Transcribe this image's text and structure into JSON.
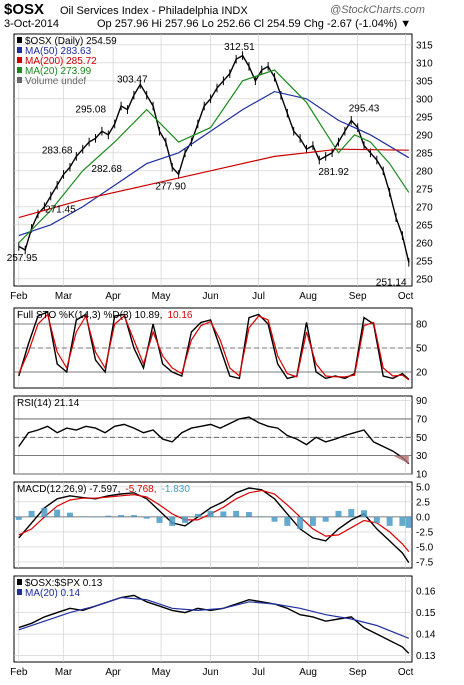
{
  "header": {
    "symbol": "$OSX",
    "name": "Oil Services Index - Philadelphia INDX",
    "credit": "@StockCharts.com",
    "date": "3-Oct-2014",
    "quote": "Op 257.96  Hi 257.96  Lo 252.66  Cl 254.59  Chg -2.67 (-1.04%) ▼"
  },
  "colors": {
    "price": "#000000",
    "ma50": "#1f2f9f",
    "ma200": "#cc0000",
    "ma20": "#1a8a1a",
    "sto_d": "#dd0000",
    "rsi_fill": "#b07070",
    "macd_signal": "#dd0000",
    "histogram": "#4a9ac6",
    "grid": "#cccccc"
  },
  "chart_data": [
    {
      "type": "line",
      "id": "price",
      "legend": [
        {
          "label": "$OSX (Daily) 254.59",
          "color": "#000000"
        },
        {
          "label": "MA(50) 283.63",
          "color": "#1f2f9f"
        },
        {
          "label": "MA(200) 285.72",
          "color": "#cc0000"
        },
        {
          "label": "MA(20) 273.99",
          "color": "#1a8a1a"
        },
        {
          "label": "Volume undef",
          "color": "#666666"
        }
      ],
      "ylim": [
        248,
        318
      ],
      "y_ticks": [
        250,
        255,
        260,
        265,
        270,
        275,
        280,
        285,
        290,
        295,
        300,
        305,
        310,
        315
      ],
      "x_labels": [
        "Feb",
        "Mar",
        "Apr",
        "May",
        "Jun",
        "Jul",
        "Aug",
        "Sep",
        "Oct"
      ],
      "x_label_days": [
        0,
        28,
        59,
        89,
        120,
        150,
        181,
        212,
        242
      ],
      "day_range": [
        -3,
        246
      ],
      "annotations": [
        {
          "text": "257.95",
          "day": 2,
          "value": 257.95,
          "pos": "below"
        },
        {
          "text": "271.45",
          "day": 26,
          "value": 271.45,
          "pos": "below"
        },
        {
          "text": "283.68",
          "day": 24,
          "value": 283.68,
          "pos": "above"
        },
        {
          "text": "295.08",
          "day": 45,
          "value": 295.08,
          "pos": "above"
        },
        {
          "text": "282.68",
          "day": 55,
          "value": 282.68,
          "pos": "below"
        },
        {
          "text": "303.47",
          "day": 71,
          "value": 303.47,
          "pos": "above"
        },
        {
          "text": "277.90",
          "day": 95,
          "value": 277.9,
          "pos": "below"
        },
        {
          "text": "312.51",
          "day": 138,
          "value": 312.51,
          "pos": "above"
        },
        {
          "text": "281.92",
          "day": 197,
          "value": 281.92,
          "pos": "below"
        },
        {
          "text": "295.43",
          "day": 216,
          "value": 295.43,
          "pos": "above"
        },
        {
          "text": "251.14",
          "day": 233,
          "value": 251.14,
          "pos": "below"
        }
      ],
      "series": [
        {
          "name": "$OSX (Daily)",
          "x": [
            0,
            4,
            8,
            12,
            16,
            20,
            24,
            28,
            32,
            36,
            40,
            44,
            48,
            52,
            56,
            60,
            64,
            68,
            72,
            76,
            80,
            84,
            88,
            92,
            96,
            100,
            104,
            108,
            112,
            116,
            120,
            124,
            128,
            132,
            136,
            140,
            144,
            148,
            152,
            156,
            160,
            164,
            168,
            172,
            176,
            180,
            184,
            188,
            192,
            196,
            200,
            204,
            208,
            212,
            216,
            220,
            224,
            228,
            232,
            236,
            240,
            244
          ],
          "values": [
            259,
            258,
            264,
            268,
            270,
            273,
            276,
            279,
            281,
            284,
            286,
            288,
            289,
            291,
            290,
            293,
            298,
            297,
            301,
            304,
            301,
            298,
            291,
            288,
            281,
            279,
            285,
            288,
            293,
            298,
            300,
            303,
            305,
            307,
            311,
            312,
            309,
            305,
            308,
            309,
            306,
            301,
            296,
            291,
            289,
            286,
            287,
            283,
            284,
            285,
            288,
            291,
            294,
            292,
            287,
            285,
            283,
            280,
            274,
            267,
            262,
            254.59
          ]
        },
        {
          "name": "MA(50)",
          "x": [
            0,
            20,
            40,
            60,
            80,
            100,
            120,
            140,
            160,
            180,
            200,
            220,
            244
          ],
          "values": [
            262,
            265,
            270,
            276,
            282,
            285,
            291,
            297,
            302,
            300,
            294,
            290,
            283.63
          ]
        },
        {
          "name": "MA(200)",
          "x": [
            0,
            40,
            80,
            120,
            160,
            200,
            244
          ],
          "values": [
            267,
            272,
            276,
            280,
            284,
            286,
            285.72
          ]
        },
        {
          "name": "MA(20)",
          "x": [
            0,
            20,
            40,
            60,
            80,
            100,
            120,
            140,
            160,
            180,
            200,
            210,
            220,
            232,
            244
          ],
          "values": [
            260,
            269,
            280,
            288,
            297,
            288,
            292,
            305,
            308,
            299,
            285,
            290,
            288,
            282,
            273.99
          ]
        }
      ]
    },
    {
      "type": "line",
      "id": "sto",
      "legend": [
        {
          "label": "Full STO %K(14,3) %D(3) 10.89,",
          "color": "#000000"
        },
        {
          "label": "10.16",
          "color": "#dd0000"
        }
      ],
      "ylim": [
        0,
        100
      ],
      "y_ticks": [
        20,
        50,
        80
      ],
      "ref_lines": [
        20,
        80
      ],
      "dash_lines": [
        50
      ],
      "series": [
        {
          "name": "%K",
          "x": [
            0,
            6,
            12,
            18,
            24,
            30,
            36,
            42,
            48,
            54,
            60,
            66,
            72,
            78,
            84,
            90,
            96,
            102,
            108,
            114,
            120,
            126,
            132,
            138,
            144,
            150,
            156,
            162,
            168,
            174,
            180,
            186,
            192,
            198,
            204,
            210,
            216,
            222,
            228,
            234,
            240,
            244
          ],
          "values": [
            15,
            55,
            90,
            95,
            30,
            20,
            85,
            92,
            35,
            20,
            90,
            92,
            50,
            25,
            80,
            30,
            20,
            15,
            70,
            82,
            85,
            50,
            15,
            12,
            88,
            92,
            80,
            30,
            12,
            15,
            82,
            20,
            12,
            15,
            12,
            18,
            88,
            80,
            15,
            12,
            18,
            10.89
          ]
        },
        {
          "name": "%D",
          "x": [
            0,
            6,
            12,
            18,
            24,
            30,
            36,
            42,
            48,
            54,
            60,
            66,
            72,
            78,
            84,
            90,
            96,
            102,
            108,
            114,
            120,
            126,
            132,
            138,
            144,
            150,
            156,
            162,
            168,
            174,
            180,
            186,
            192,
            198,
            204,
            210,
            216,
            222,
            228,
            234,
            240,
            244
          ],
          "values": [
            18,
            45,
            80,
            92,
            45,
            25,
            70,
            90,
            45,
            25,
            80,
            90,
            60,
            30,
            70,
            40,
            25,
            18,
            60,
            78,
            83,
            60,
            25,
            15,
            75,
            90,
            85,
            40,
            18,
            14,
            70,
            30,
            15,
            14,
            14,
            16,
            78,
            82,
            25,
            15,
            16,
            10.16
          ]
        }
      ]
    },
    {
      "type": "line",
      "id": "rsi",
      "legend": [
        {
          "label": "RSI(14) 21.14",
          "color": "#000000"
        }
      ],
      "ylim": [
        10,
        95
      ],
      "y_ticks": [
        10,
        30,
        50,
        70,
        90
      ],
      "ref_lines": [
        30,
        70
      ],
      "dash_lines": [
        50
      ],
      "series": [
        {
          "name": "RSI(14)",
          "x": [
            0,
            6,
            12,
            18,
            24,
            30,
            36,
            42,
            48,
            54,
            60,
            66,
            72,
            78,
            84,
            90,
            96,
            102,
            108,
            114,
            120,
            126,
            132,
            138,
            144,
            150,
            156,
            162,
            168,
            174,
            180,
            186,
            192,
            198,
            204,
            210,
            216,
            222,
            228,
            234,
            240,
            244
          ],
          "values": [
            40,
            55,
            58,
            62,
            55,
            60,
            58,
            62,
            60,
            55,
            62,
            64,
            60,
            55,
            58,
            48,
            45,
            55,
            60,
            62,
            64,
            60,
            65,
            70,
            72,
            66,
            62,
            60,
            52,
            48,
            42,
            50,
            45,
            48,
            52,
            55,
            58,
            45,
            40,
            35,
            28,
            21.14
          ]
        }
      ]
    },
    {
      "type": "line",
      "id": "macd",
      "legend": [
        {
          "label": "MACD(12,26,9) -7.597,",
          "color": "#000000"
        },
        {
          "label": "-5.768,",
          "color": "#dd0000"
        },
        {
          "label": "-1.830",
          "color": "#4a9ac6"
        }
      ],
      "ylim": [
        -8.5,
        5.8
      ],
      "y_ticks": [
        -7.5,
        -5.0,
        -2.5,
        0.0,
        2.5,
        5.0
      ],
      "ref_lines": [
        0
      ],
      "series": [
        {
          "name": "MACD",
          "x": [
            0,
            8,
            16,
            24,
            32,
            40,
            48,
            56,
            64,
            72,
            80,
            88,
            96,
            104,
            112,
            120,
            128,
            136,
            144,
            152,
            160,
            168,
            176,
            184,
            192,
            200,
            208,
            216,
            224,
            232,
            240,
            244
          ],
          "values": [
            -3.5,
            -1,
            1.5,
            3,
            3.5,
            3.2,
            3,
            3.5,
            3.8,
            4,
            3,
            1,
            -1,
            -1.5,
            0,
            1.5,
            2.5,
            4,
            4.8,
            4.5,
            3,
            0.5,
            -2,
            -3.5,
            -4,
            -2,
            -0.5,
            0.5,
            -2,
            -4,
            -6,
            -7.597
          ]
        },
        {
          "name": "Signal",
          "x": [
            0,
            8,
            16,
            24,
            32,
            40,
            48,
            56,
            64,
            72,
            80,
            88,
            96,
            104,
            112,
            120,
            128,
            136,
            144,
            152,
            160,
            168,
            176,
            184,
            192,
            200,
            208,
            216,
            224,
            232,
            240,
            244
          ],
          "values": [
            -3,
            -2,
            0,
            1.8,
            2.8,
            3.1,
            3.1,
            3.3,
            3.5,
            3.7,
            3.3,
            2,
            0.5,
            -0.5,
            -0.5,
            0.5,
            1.6,
            3,
            4,
            4.4,
            3.8,
            2,
            0,
            -2,
            -3.2,
            -3,
            -1.8,
            -0.6,
            -1,
            -2.5,
            -4.5,
            -5.768
          ]
        },
        {
          "name": "Histogram",
          "x": [
            0,
            8,
            16,
            24,
            32,
            40,
            48,
            56,
            64,
            72,
            80,
            88,
            96,
            104,
            112,
            120,
            128,
            136,
            144,
            152,
            160,
            168,
            176,
            184,
            192,
            200,
            208,
            216,
            224,
            232,
            240,
            244
          ],
          "values": [
            -0.5,
            1,
            1.5,
            1.2,
            0.7,
            0.1,
            -0.1,
            0.2,
            0.3,
            0.3,
            -0.3,
            -1,
            -1.5,
            -1,
            0.5,
            1,
            0.9,
            1,
            0.8,
            0.1,
            -0.8,
            -1.5,
            -2,
            -1.5,
            -0.8,
            1,
            1.3,
            1.1,
            -1,
            -1.5,
            -1.5,
            -1.83
          ]
        }
      ]
    },
    {
      "type": "line",
      "id": "ratio",
      "legend": [
        {
          "label": "$OSX:$SPX 0.13",
          "color": "#000000"
        },
        {
          "label": "MA(20) 0.14",
          "color": "#1f2f9f"
        }
      ],
      "ylim": [
        0.127,
        0.167
      ],
      "y_ticks": [
        0.13,
        0.14,
        0.15,
        0.16
      ],
      "series": [
        {
          "name": "$OSX:$SPX",
          "x": [
            0,
            8,
            16,
            24,
            32,
            40,
            48,
            56,
            64,
            72,
            80,
            88,
            96,
            104,
            112,
            120,
            128,
            136,
            144,
            152,
            160,
            168,
            176,
            184,
            192,
            200,
            208,
            216,
            224,
            232,
            240,
            244
          ],
          "values": [
            0.143,
            0.145,
            0.148,
            0.15,
            0.152,
            0.151,
            0.153,
            0.155,
            0.157,
            0.158,
            0.155,
            0.153,
            0.151,
            0.15,
            0.152,
            0.151,
            0.152,
            0.154,
            0.156,
            0.155,
            0.154,
            0.152,
            0.149,
            0.148,
            0.146,
            0.147,
            0.148,
            0.143,
            0.14,
            0.137,
            0.134,
            0.131
          ]
        },
        {
          "name": "MA(20)",
          "x": [
            0,
            16,
            32,
            48,
            64,
            80,
            96,
            112,
            128,
            144,
            160,
            176,
            192,
            208,
            224,
            244
          ],
          "values": [
            0.142,
            0.146,
            0.15,
            0.153,
            0.157,
            0.156,
            0.152,
            0.151,
            0.152,
            0.155,
            0.154,
            0.152,
            0.149,
            0.147,
            0.144,
            0.138
          ]
        }
      ],
      "x_labels": [
        "Feb",
        "Mar",
        "Apr",
        "May",
        "Jun",
        "Jul",
        "Aug",
        "Sep",
        "Oct"
      ],
      "x_label_days": [
        0,
        28,
        59,
        89,
        120,
        150,
        181,
        212,
        242
      ]
    }
  ]
}
